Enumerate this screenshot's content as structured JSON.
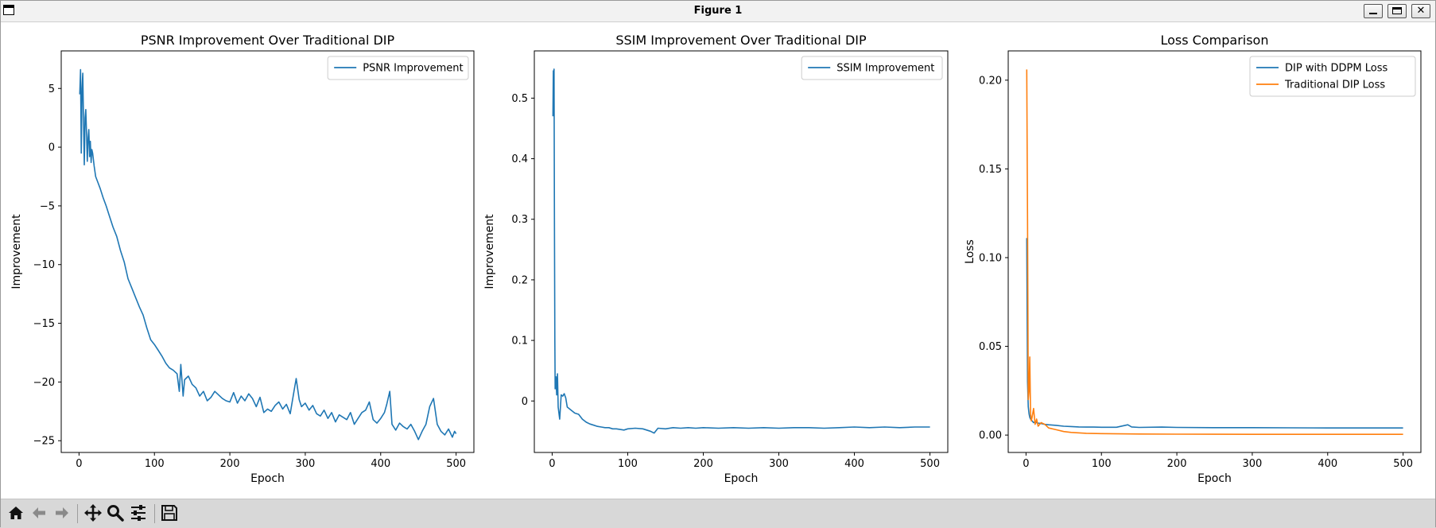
{
  "window": {
    "title": "Figure 1",
    "controls": [
      "minimize",
      "maximize",
      "close"
    ]
  },
  "toolbar": {
    "icons": [
      "home-icon",
      "back-arrow-icon",
      "forward-arrow-icon",
      "pan-icon",
      "zoom-icon",
      "configure-subplots-icon",
      "save-icon"
    ]
  },
  "colors": {
    "series_blue": "#1f77b4",
    "series_orange": "#ff7f0e"
  },
  "chart_data": [
    {
      "type": "line",
      "title": "PSNR Improvement Over Traditional DIP",
      "xlabel": "Epoch",
      "ylabel": "Improvement",
      "xlim": [
        -23.6,
        523.6
      ],
      "ylim": [
        -26.0,
        8.2
      ],
      "xticks": [
        0,
        100,
        200,
        300,
        400,
        500
      ],
      "yticks": [
        -25,
        -20,
        -15,
        -10,
        -5,
        0,
        5
      ],
      "grid": false,
      "legend": "upper right",
      "series": [
        {
          "name": "PSNR Improvement",
          "color": "#1f77b4",
          "x": [
            1,
            2,
            3,
            4,
            5,
            6,
            7,
            8,
            9,
            10,
            11,
            12,
            13,
            14,
            15,
            16,
            17,
            18,
            20,
            22,
            25,
            28,
            32,
            36,
            40,
            45,
            50,
            55,
            60,
            65,
            70,
            75,
            80,
            85,
            90,
            95,
            100,
            105,
            110,
            115,
            120,
            125,
            130,
            133,
            135,
            138,
            140,
            145,
            150,
            155,
            160,
            165,
            170,
            175,
            180,
            185,
            190,
            195,
            200,
            205,
            210,
            215,
            220,
            225,
            230,
            235,
            240,
            245,
            250,
            255,
            260,
            265,
            270,
            275,
            280,
            285,
            288,
            292,
            295,
            300,
            305,
            310,
            315,
            320,
            325,
            330,
            335,
            340,
            345,
            350,
            355,
            360,
            365,
            370,
            375,
            380,
            385,
            390,
            395,
            400,
            405,
            408,
            412,
            415,
            420,
            425,
            430,
            435,
            440,
            445,
            450,
            455,
            460,
            465,
            470,
            475,
            480,
            485,
            490,
            495,
            498,
            500
          ],
          "values": [
            4.5,
            6.6,
            -0.5,
            5.0,
            6.3,
            2.0,
            -1.5,
            2.5,
            3.2,
            1.0,
            -1.2,
            0.8,
            1.5,
            -0.8,
            0.5,
            -1.3,
            -0.2,
            -0.5,
            -1.6,
            -2.5,
            -3.0,
            -3.5,
            -4.3,
            -5.0,
            -5.8,
            -6.8,
            -7.6,
            -8.8,
            -9.8,
            -11.2,
            -12.0,
            -12.8,
            -13.6,
            -14.3,
            -15.4,
            -16.4,
            -16.8,
            -17.3,
            -17.8,
            -18.4,
            -18.8,
            -19.0,
            -19.3,
            -20.8,
            -18.5,
            -21.2,
            -19.8,
            -19.5,
            -20.2,
            -20.5,
            -21.2,
            -20.8,
            -21.6,
            -21.3,
            -20.8,
            -21.1,
            -21.4,
            -21.6,
            -21.7,
            -20.9,
            -21.8,
            -21.2,
            -21.6,
            -21.0,
            -21.4,
            -22.1,
            -21.3,
            -22.6,
            -22.3,
            -22.5,
            -22.0,
            -21.7,
            -22.3,
            -21.9,
            -22.7,
            -20.8,
            -19.7,
            -21.5,
            -22.1,
            -21.8,
            -22.4,
            -22.0,
            -22.7,
            -22.9,
            -22.4,
            -23.1,
            -22.6,
            -23.4,
            -22.8,
            -23.0,
            -23.2,
            -22.6,
            -23.6,
            -23.1,
            -22.6,
            -22.4,
            -21.7,
            -23.2,
            -23.5,
            -23.1,
            -22.6,
            -21.9,
            -20.8,
            -23.6,
            -24.1,
            -23.5,
            -23.8,
            -24.0,
            -23.6,
            -24.2,
            -24.9,
            -24.2,
            -23.6,
            -22.1,
            -21.4,
            -23.6,
            -24.2,
            -24.5,
            -24.0,
            -24.7,
            -24.2,
            -24.4
          ]
        }
      ]
    },
    {
      "type": "line",
      "title": "SSIM Improvement Over Traditional DIP",
      "xlabel": "Epoch",
      "ylabel": "Improvement",
      "xlim": [
        -23.6,
        523.6
      ],
      "ylim": [
        -0.085,
        0.578
      ],
      "xticks": [
        0,
        100,
        200,
        300,
        400,
        500
      ],
      "yticks": [
        0.0,
        0.1,
        0.2,
        0.3,
        0.4,
        0.5
      ],
      "grid": false,
      "legend": "upper right",
      "series": [
        {
          "name": "SSIM Improvement",
          "color": "#1f77b4",
          "x": [
            1,
            1.5,
            2,
            2.5,
            3,
            3.5,
            4,
            5,
            6,
            7,
            8,
            10,
            12,
            14,
            16,
            18,
            20,
            25,
            30,
            35,
            40,
            45,
            50,
            55,
            60,
            65,
            70,
            75,
            80,
            85,
            90,
            95,
            100,
            110,
            120,
            130,
            135,
            140,
            150,
            160,
            170,
            180,
            190,
            200,
            220,
            240,
            260,
            280,
            300,
            320,
            340,
            360,
            380,
            400,
            420,
            440,
            460,
            480,
            500
          ],
          "values": [
            0.47,
            0.545,
            0.48,
            0.548,
            0.3,
            0.1,
            0.02,
            0.04,
            0.01,
            0.045,
            -0.01,
            -0.03,
            0.01,
            0.008,
            0.012,
            0.005,
            -0.01,
            -0.015,
            -0.02,
            -0.022,
            -0.03,
            -0.035,
            -0.038,
            -0.04,
            -0.042,
            -0.043,
            -0.044,
            -0.044,
            -0.046,
            -0.046,
            -0.047,
            -0.048,
            -0.046,
            -0.045,
            -0.046,
            -0.05,
            -0.053,
            -0.045,
            -0.046,
            -0.044,
            -0.045,
            -0.044,
            -0.045,
            -0.044,
            -0.045,
            -0.044,
            -0.045,
            -0.044,
            -0.045,
            -0.044,
            -0.044,
            -0.045,
            -0.044,
            -0.043,
            -0.044,
            -0.043,
            -0.044,
            -0.043,
            -0.043
          ]
        }
      ]
    },
    {
      "type": "line",
      "title": "Loss Comparison",
      "xlabel": "Epoch",
      "ylabel": "Loss",
      "xlim": [
        -23.6,
        523.6
      ],
      "ylim": [
        -0.0098,
        0.2165
      ],
      "xticks": [
        0,
        100,
        200,
        300,
        400,
        500
      ],
      "yticks": [
        0.0,
        0.05,
        0.1,
        0.15,
        0.2
      ],
      "ytick_labels": [
        "0.00",
        "0.05",
        "0.10",
        "0.15",
        "0.20"
      ],
      "grid": false,
      "legend": "upper right",
      "series": [
        {
          "name": "DIP with DDPM Loss",
          "color": "#1f77b4",
          "x": [
            1,
            2,
            3,
            4,
            5,
            6,
            8,
            10,
            12,
            15,
            20,
            25,
            30,
            40,
            50,
            60,
            70,
            80,
            90,
            100,
            120,
            135,
            140,
            150,
            180,
            200,
            250,
            300,
            350,
            400,
            450,
            500
          ],
          "values": [
            0.111,
            0.03,
            0.016,
            0.012,
            0.01,
            0.009,
            0.008,
            0.007,
            0.0075,
            0.0068,
            0.0065,
            0.006,
            0.0058,
            0.0055,
            0.005,
            0.0048,
            0.0046,
            0.0045,
            0.0045,
            0.0044,
            0.0044,
            0.0058,
            0.0046,
            0.0043,
            0.0045,
            0.0043,
            0.0042,
            0.0042,
            0.0041,
            0.004,
            0.004,
            0.004
          ]
        },
        {
          "name": "Traditional DIP Loss",
          "color": "#ff7f0e",
          "x": [
            1,
            2,
            3,
            4,
            5,
            6,
            7,
            8,
            10,
            12,
            14,
            16,
            20,
            25,
            30,
            40,
            50,
            60,
            80,
            100,
            150,
            200,
            300,
            400,
            500
          ],
          "values": [
            0.206,
            0.12,
            0.02,
            0.025,
            0.044,
            0.012,
            0.008,
            0.01,
            0.015,
            0.006,
            0.009,
            0.005,
            0.007,
            0.006,
            0.004,
            0.003,
            0.002,
            0.0015,
            0.001,
            0.0008,
            0.0006,
            0.0005,
            0.0004,
            0.0004,
            0.0004
          ]
        }
      ]
    }
  ]
}
